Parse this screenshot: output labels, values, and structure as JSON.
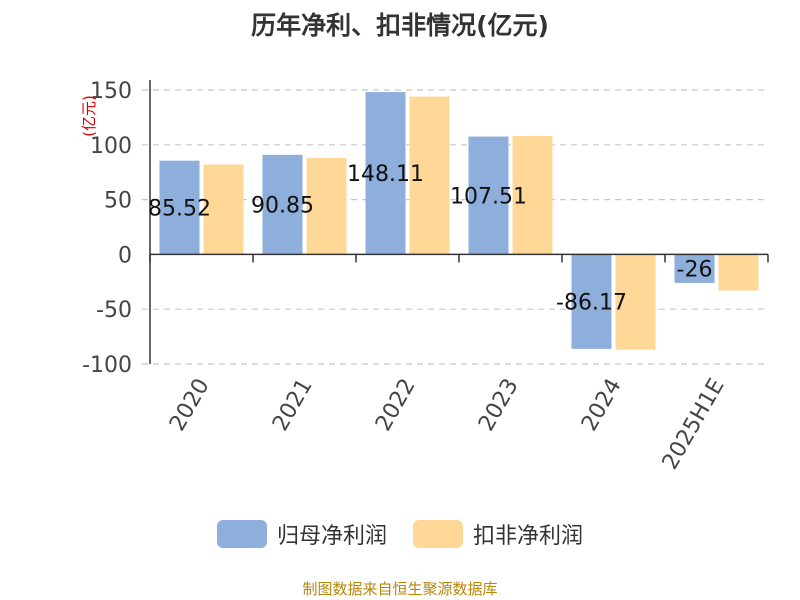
{
  "chart_data": {
    "type": "bar",
    "title": "历年净利、扣非情况(亿元)",
    "ylabel": "(亿元)",
    "categories": [
      "2020",
      "2021",
      "2022",
      "2023",
      "2024",
      "2025H1E"
    ],
    "series": [
      {
        "name": "归母净利润",
        "values": [
          85.52,
          90.85,
          148.11,
          107.51,
          -86.17,
          -26
        ],
        "color": "#8eaedb"
      },
      {
        "name": "扣非净利润",
        "values": [
          82,
          88,
          144,
          108,
          -87,
          -33
        ],
        "color": "#ffd898"
      }
    ],
    "data_labels": [
      "85.52",
      "90.85",
      "148.11",
      "107.51",
      "-86.17",
      "-26"
    ],
    "ylim": [
      -100,
      150
    ],
    "yticks": [
      "150",
      "100",
      "50",
      "0",
      "-50",
      "-100"
    ],
    "grid": true,
    "legend_position": "bottom"
  },
  "source_note": "制图数据来自恒生聚源数据库"
}
